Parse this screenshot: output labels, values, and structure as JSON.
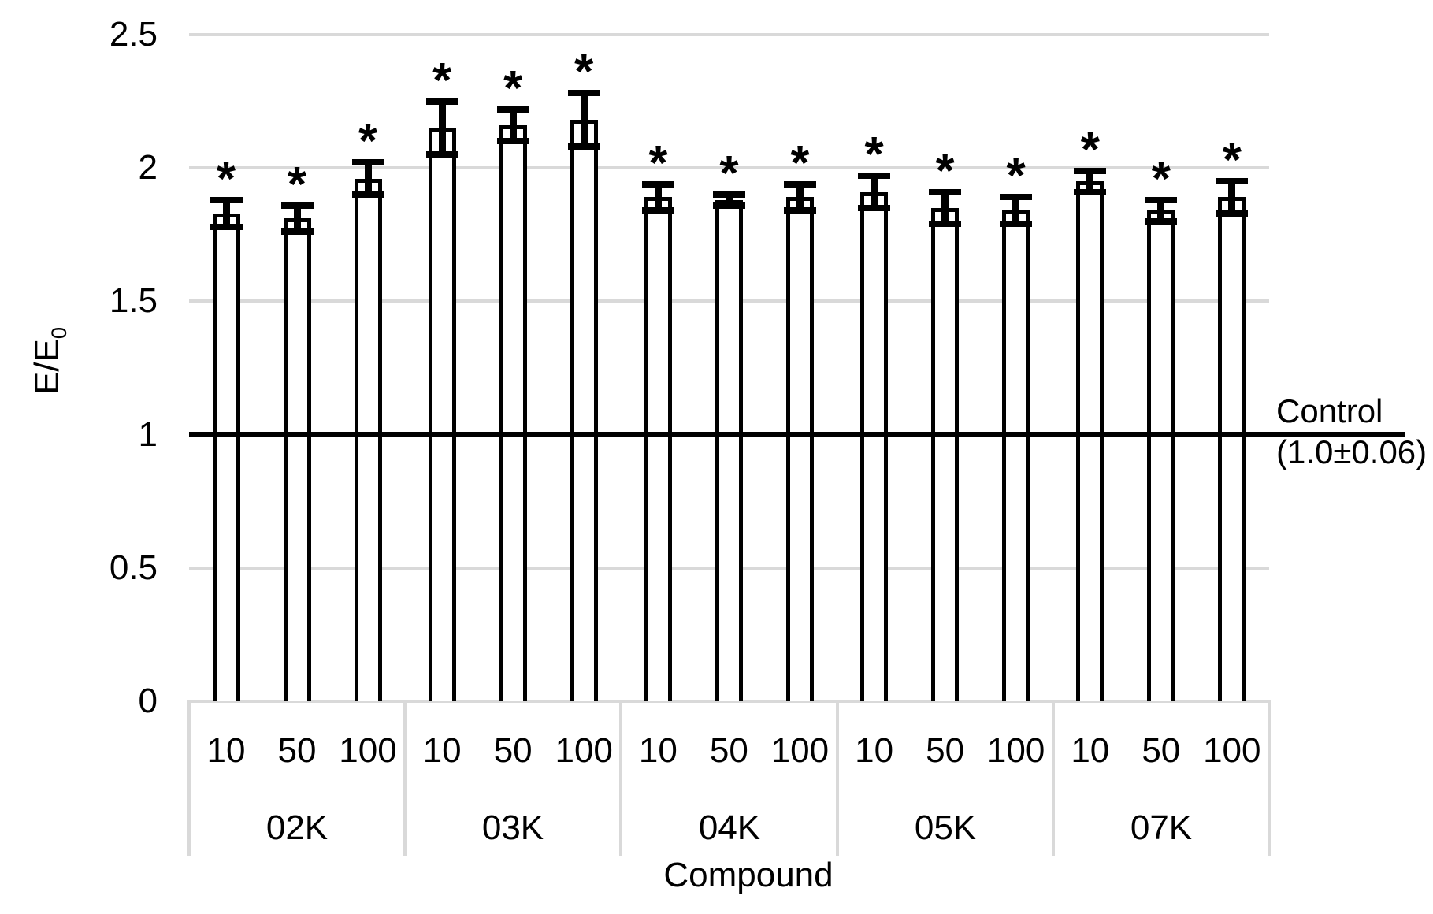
{
  "chart_data": {
    "type": "bar",
    "title": "",
    "xlabel": "Compound",
    "ylabel_base": "E/E",
    "ylabel_subscript": "0",
    "ylim": [
      0,
      2.5
    ],
    "yticks": [
      0,
      0.5,
      1,
      1.5,
      2,
      2.5
    ],
    "ytick_labels": [
      "0",
      "0.5",
      "1",
      "1.5",
      "2",
      "2.5"
    ],
    "grid": "horizontal",
    "legend_position": "none",
    "bar_fill": "#ffffff",
    "bar_outline": "#000000",
    "gridline_color": "#d9d9d9",
    "dose_labels": [
      "10",
      "50",
      "100"
    ],
    "significance_marker": "*",
    "groups": [
      {
        "name": "02K",
        "values": [
          1.83,
          1.81,
          1.96
        ],
        "errors": [
          0.05,
          0.05,
          0.06
        ]
      },
      {
        "name": "03K",
        "values": [
          2.15,
          2.16,
          2.18
        ],
        "errors": [
          0.1,
          0.06,
          0.1
        ]
      },
      {
        "name": "04K",
        "values": [
          1.89,
          1.88,
          1.89
        ],
        "errors": [
          0.05,
          0.02,
          0.05
        ]
      },
      {
        "name": "05K",
        "values": [
          1.91,
          1.85,
          1.84
        ],
        "errors": [
          0.06,
          0.06,
          0.05
        ]
      },
      {
        "name": "07K",
        "values": [
          1.95,
          1.84,
          1.89
        ],
        "errors": [
          0.04,
          0.04,
          0.06
        ]
      }
    ],
    "control_annotation": {
      "line_value": 1.0,
      "label_line1": "Control",
      "label_line2": "(1.0±0.06)"
    }
  }
}
